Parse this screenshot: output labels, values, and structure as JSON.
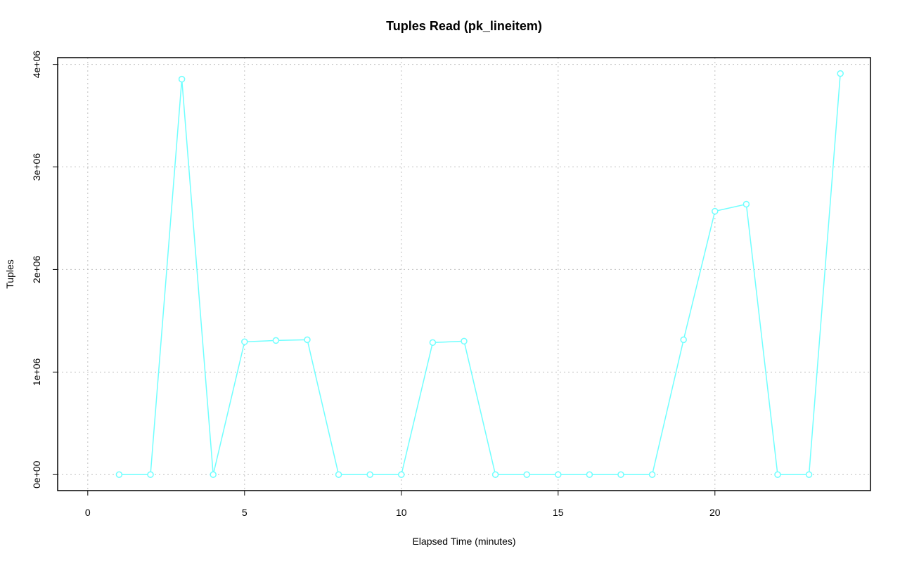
{
  "chart_data": {
    "type": "line",
    "title": "Tuples Read (pk_lineitem)",
    "x_label": "Elapsed Time (minutes)",
    "y_label": "Tuples",
    "x": [
      1,
      2,
      3,
      4,
      5,
      6,
      7,
      8,
      9,
      10,
      11,
      12,
      13,
      14,
      15,
      16,
      17,
      18,
      19,
      20,
      21,
      22,
      23,
      24
    ],
    "series": [
      {
        "name": "pk_lineitem",
        "color": "#70ffff",
        "values": [
          0,
          0,
          3856000,
          0,
          1295000,
          1308000,
          1315000,
          0,
          0,
          0,
          1288000,
          1301000,
          0,
          0,
          0,
          0,
          0,
          0,
          1315000,
          2568000,
          2637000,
          0,
          0,
          3911000
        ]
      }
    ],
    "xlim": [
      -0.96,
      24.96
    ],
    "xticks": [
      0,
      5,
      10,
      15,
      20
    ],
    "ylim": [
      -156000,
      4066000
    ],
    "yticks": [
      {
        "value": 0,
        "label": "0e+00"
      },
      {
        "value": 1000000,
        "label": "1e+06"
      },
      {
        "value": 2000000,
        "label": "2e+06"
      },
      {
        "value": 3000000,
        "label": "3e+06"
      },
      {
        "value": 4000000,
        "label": "4e+06"
      }
    ],
    "grid": true
  }
}
